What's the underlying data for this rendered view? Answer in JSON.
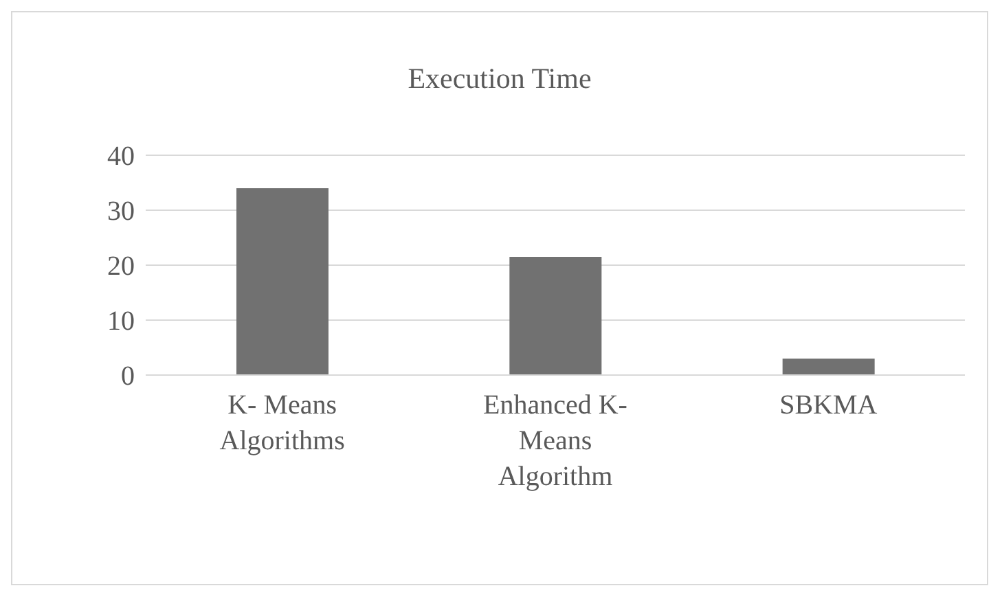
{
  "chart_data": {
    "type": "bar",
    "title": "Execution Time",
    "categories": [
      "K- Means Algorithms",
      "Enhanced K- Means Algorithm",
      "SBKMA"
    ],
    "values": [
      34,
      21.5,
      3
    ],
    "color": "#717171",
    "ylim": [
      0,
      40
    ],
    "yticks": [
      0,
      10,
      20,
      30,
      40
    ],
    "grid": "y"
  }
}
